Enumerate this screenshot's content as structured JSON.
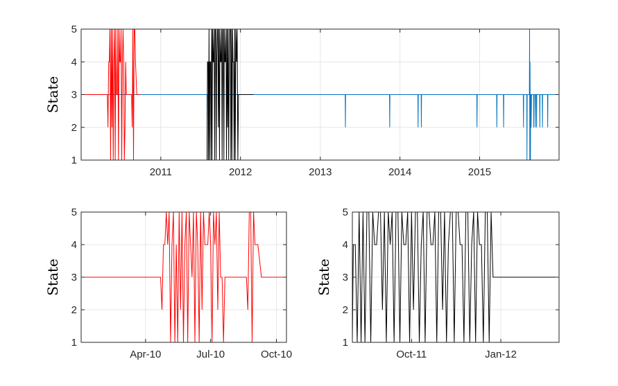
{
  "colors": {
    "blue": "#0072BD",
    "red": "#FF0000",
    "black": "#000000",
    "grid": "#E6E6E6",
    "axis": "#262626"
  },
  "chart_data": [
    {
      "id": "top",
      "type": "line",
      "ylabel": "State",
      "x_axis": "date",
      "xlim": [
        "2010-01-01",
        "2015-12-31"
      ],
      "ylim": [
        1,
        5
      ],
      "grid": true,
      "xticks": [
        {
          "date": "2011-01-01",
          "label": "2011"
        },
        {
          "date": "2012-01-01",
          "label": "2012"
        },
        {
          "date": "2013-01-01",
          "label": "2013"
        },
        {
          "date": "2014-01-01",
          "label": "2014"
        },
        {
          "date": "2015-01-01",
          "label": "2015"
        }
      ],
      "yticks": [
        1,
        2,
        3,
        4,
        5
      ],
      "series": [
        {
          "color": "blue",
          "x": [
            "2010-01-01",
            "2010-09-13",
            "2011-08-01",
            "2011-08-02",
            "2011-08-03",
            "2012-03-01",
            "2013-04-25",
            "2013-04-26",
            "2013-04-27",
            "2013-11-14",
            "2013-11-15",
            "2013-11-16",
            "2014-03-24",
            "2014-03-25",
            "2014-03-26",
            "2014-04-08",
            "2014-04-09",
            "2014-04-10",
            "2014-12-19",
            "2014-12-20",
            "2014-12-21",
            "2015-03-20",
            "2015-03-21",
            "2015-03-22",
            "2015-04-20",
            "2015-04-21",
            "2015-04-22",
            "2015-07-20",
            "2015-07-21",
            "2015-07-22",
            "2015-08-05",
            "2015-08-06",
            "2015-08-07",
            "2015-08-17",
            "2015-08-18",
            "2015-08-19",
            "2015-08-20",
            "2015-08-21",
            "2015-08-22",
            "2015-08-23",
            "2015-08-24",
            "2015-08-25",
            "2015-08-27",
            "2015-08-28",
            "2015-09-05",
            "2015-09-06",
            "2015-09-07",
            "2015-09-12",
            "2015-09-13",
            "2015-09-14",
            "2015-09-18",
            "2015-09-19",
            "2015-09-20",
            "2015-10-03",
            "2015-10-04",
            "2015-10-05",
            "2015-10-15",
            "2015-10-16",
            "2015-10-17",
            "2015-11-08",
            "2015-11-09",
            "2015-11-10",
            "2015-12-31"
          ],
          "y": [
            3,
            3,
            3,
            1,
            3,
            3,
            3,
            2,
            3,
            3,
            2,
            3,
            3,
            2,
            3,
            3,
            2,
            3,
            3,
            2,
            3,
            3,
            2,
            3,
            3,
            2,
            3,
            3,
            2,
            3,
            3,
            1,
            3,
            3,
            5,
            1,
            4,
            2,
            1,
            3,
            3,
            2,
            3,
            3,
            3,
            2,
            3,
            3,
            2,
            3,
            3,
            2,
            3,
            3,
            2,
            3,
            3,
            2,
            3,
            3,
            2,
            3,
            3
          ]
        },
        {
          "color": "red",
          "x": [
            "2010-01-01",
            "2010-05-01",
            "2010-05-04",
            "2010-05-07",
            "2010-05-10",
            "2010-05-13",
            "2010-05-16",
            "2010-05-19",
            "2010-05-22",
            "2010-05-25",
            "2010-05-28",
            "2010-05-31",
            "2010-06-03",
            "2010-06-06",
            "2010-06-09",
            "2010-06-12",
            "2010-06-15",
            "2010-06-18",
            "2010-06-21",
            "2010-06-24",
            "2010-06-27",
            "2010-06-30",
            "2010-07-03",
            "2010-07-06",
            "2010-07-09",
            "2010-07-12",
            "2010-07-15",
            "2010-07-18",
            "2010-07-21",
            "2010-07-24",
            "2010-07-27",
            "2010-07-30",
            "2010-08-02",
            "2010-08-05",
            "2010-08-08",
            "2010-08-11",
            "2010-08-14",
            "2010-08-17",
            "2010-08-20",
            "2010-08-23",
            "2010-08-26",
            "2010-08-29",
            "2010-09-01",
            "2010-09-04",
            "2010-09-07",
            "2010-09-13",
            "2010-09-30"
          ],
          "y": [
            3,
            3,
            2,
            4,
            4,
            5,
            1,
            5,
            2,
            5,
            1,
            4,
            5,
            1,
            5,
            3,
            3,
            5,
            1,
            5,
            4,
            4,
            5,
            1,
            4,
            5,
            4,
            1,
            2,
            4,
            3,
            3,
            3,
            3,
            3,
            3,
            3,
            3,
            3,
            2,
            5,
            1,
            5,
            5,
            4,
            3,
            3
          ]
        },
        {
          "color": "black",
          "x": [
            "2011-08-01",
            "2011-08-03",
            "2011-08-06",
            "2011-08-08",
            "2011-08-10",
            "2011-08-12",
            "2011-08-14",
            "2011-08-17",
            "2011-08-19",
            "2011-08-22",
            "2011-08-24",
            "2011-08-26",
            "2011-08-29",
            "2011-08-31",
            "2011-09-02",
            "2011-09-05",
            "2011-09-07",
            "2011-09-10",
            "2011-09-12",
            "2011-09-14",
            "2011-09-17",
            "2011-09-19",
            "2011-09-22",
            "2011-09-24",
            "2011-09-27",
            "2011-09-29",
            "2011-10-02",
            "2011-10-04",
            "2011-10-07",
            "2011-10-09",
            "2011-10-12",
            "2011-10-14",
            "2011-10-17",
            "2011-10-19",
            "2011-10-22",
            "2011-10-24",
            "2011-10-27",
            "2011-10-29",
            "2011-11-01",
            "2011-11-03",
            "2011-11-06",
            "2011-11-08",
            "2011-11-11",
            "2011-11-13",
            "2011-11-16",
            "2011-11-18",
            "2011-11-21",
            "2011-11-23",
            "2011-11-26",
            "2011-11-28",
            "2011-12-01",
            "2011-12-03",
            "2011-12-06",
            "2011-12-08",
            "2011-12-11",
            "2011-12-14",
            "2011-12-17",
            "2011-12-20",
            "2011-12-23",
            "2011-12-26",
            "2011-12-29",
            "2012-03-01"
          ],
          "y": [
            1,
            4,
            4,
            1,
            5,
            1,
            4,
            4,
            1,
            5,
            1,
            5,
            4,
            4,
            5,
            1,
            5,
            5,
            1,
            4,
            5,
            5,
            2,
            5,
            1,
            5,
            4,
            4,
            5,
            1,
            5,
            5,
            1,
            5,
            4,
            4,
            5,
            1,
            5,
            2,
            5,
            1,
            4,
            5,
            5,
            1,
            5,
            1,
            5,
            4,
            4,
            1,
            5,
            1,
            5,
            4,
            5,
            1,
            3,
            3,
            3,
            3
          ]
        }
      ]
    },
    {
      "id": "bottom-left",
      "type": "line",
      "ylabel": "State",
      "x_axis": "date",
      "xlim": [
        "2010-01-01",
        "2010-10-15"
      ],
      "ylim": [
        1,
        5
      ],
      "grid": true,
      "xticks": [
        {
          "date": "2010-04-01",
          "label": "Apr-10"
        },
        {
          "date": "2010-07-01",
          "label": "Jul-10"
        },
        {
          "date": "2010-10-01",
          "label": "Oct-10"
        }
      ],
      "yticks": [
        1,
        2,
        3,
        4,
        5
      ],
      "series": [
        {
          "color": "red",
          "x": [
            "2010-01-01",
            "2010-04-22",
            "2010-04-24",
            "2010-04-26",
            "2010-04-28",
            "2010-04-30",
            "2010-05-02",
            "2010-05-04",
            "2010-05-06",
            "2010-05-08",
            "2010-05-10",
            "2010-05-12",
            "2010-05-14",
            "2010-05-16",
            "2010-05-18",
            "2010-05-20",
            "2010-05-22",
            "2010-05-24",
            "2010-05-26",
            "2010-05-28",
            "2010-05-30",
            "2010-06-01",
            "2010-06-03",
            "2010-06-05",
            "2010-06-07",
            "2010-06-09",
            "2010-06-11",
            "2010-06-13",
            "2010-06-15",
            "2010-06-17",
            "2010-06-19",
            "2010-06-21",
            "2010-06-23",
            "2010-06-25",
            "2010-06-27",
            "2010-06-29",
            "2010-07-01",
            "2010-07-03",
            "2010-07-05",
            "2010-07-07",
            "2010-07-09",
            "2010-07-11",
            "2010-07-13",
            "2010-07-15",
            "2010-07-17",
            "2010-07-19",
            "2010-07-21",
            "2010-07-23",
            "2010-07-25",
            "2010-08-01",
            "2010-08-15",
            "2010-08-20",
            "2010-08-22",
            "2010-08-24",
            "2010-08-26",
            "2010-08-28",
            "2010-08-30",
            "2010-09-01",
            "2010-09-05",
            "2010-09-10",
            "2010-10-15"
          ],
          "y": [
            3,
            3,
            2,
            4,
            4,
            5,
            4,
            5,
            1,
            4,
            5,
            1,
            4,
            1,
            5,
            2,
            5,
            1,
            4,
            5,
            1,
            5,
            4,
            3,
            5,
            1,
            5,
            4,
            1,
            5,
            2,
            5,
            4,
            4,
            4,
            5,
            4,
            1,
            5,
            4,
            5,
            2,
            5,
            3,
            3,
            1,
            3,
            3,
            3,
            3,
            3,
            3,
            2,
            5,
            5,
            1,
            5,
            4,
            4,
            3,
            3
          ]
        }
      ]
    },
    {
      "id": "bottom-right",
      "type": "line",
      "ylabel": "State",
      "x_axis": "date",
      "xlim": [
        "2011-08-01",
        "2012-03-01"
      ],
      "ylim": [
        1,
        5
      ],
      "grid": true,
      "xticks": [
        {
          "date": "2011-10-01",
          "label": "Oct-11"
        },
        {
          "date": "2012-01-01",
          "label": "Jan-12"
        }
      ],
      "yticks": [
        1,
        2,
        3,
        4,
        5
      ],
      "series": [
        {
          "color": "black",
          "x": [
            "2011-08-01",
            "2011-08-02",
            "2011-08-04",
            "2011-08-06",
            "2011-08-08",
            "2011-08-10",
            "2011-08-12",
            "2011-08-14",
            "2011-08-16",
            "2011-08-18",
            "2011-08-20",
            "2011-08-22",
            "2011-08-24",
            "2011-08-26",
            "2011-08-28",
            "2011-08-30",
            "2011-09-01",
            "2011-09-03",
            "2011-09-05",
            "2011-09-07",
            "2011-09-09",
            "2011-09-11",
            "2011-09-13",
            "2011-09-15",
            "2011-09-17",
            "2011-09-19",
            "2011-09-21",
            "2011-09-23",
            "2011-09-25",
            "2011-09-27",
            "2011-09-29",
            "2011-10-01",
            "2011-10-03",
            "2011-10-05",
            "2011-10-07",
            "2011-10-09",
            "2011-10-11",
            "2011-10-13",
            "2011-10-15",
            "2011-10-17",
            "2011-10-19",
            "2011-10-21",
            "2011-10-23",
            "2011-10-25",
            "2011-10-27",
            "2011-10-29",
            "2011-10-31",
            "2011-11-02",
            "2011-11-04",
            "2011-11-06",
            "2011-11-08",
            "2011-11-10",
            "2011-11-12",
            "2011-11-14",
            "2011-11-16",
            "2011-11-18",
            "2011-11-20",
            "2011-11-22",
            "2011-11-24",
            "2011-11-26",
            "2011-11-28",
            "2011-11-30",
            "2011-12-02",
            "2011-12-04",
            "2011-12-06",
            "2011-12-08",
            "2011-12-10",
            "2011-12-12",
            "2011-12-14",
            "2011-12-16",
            "2011-12-18",
            "2011-12-20",
            "2011-12-22",
            "2011-12-24",
            "2011-12-27",
            "2012-03-01"
          ],
          "y": [
            1,
            4,
            4,
            1,
            5,
            1,
            5,
            1,
            5,
            5,
            1,
            5,
            4,
            4,
            5,
            5,
            2,
            5,
            1,
            5,
            4,
            5,
            1,
            5,
            5,
            1,
            5,
            4,
            4,
            5,
            1,
            5,
            2,
            5,
            5,
            1,
            4,
            5,
            1,
            5,
            5,
            4,
            4,
            5,
            1,
            5,
            5,
            2,
            5,
            1,
            4,
            5,
            5,
            1,
            5,
            5,
            4,
            4,
            1,
            5,
            5,
            1,
            4,
            5,
            1,
            5,
            4,
            4,
            1,
            5,
            5,
            1,
            5,
            3,
            3,
            3
          ]
        }
      ]
    }
  ]
}
